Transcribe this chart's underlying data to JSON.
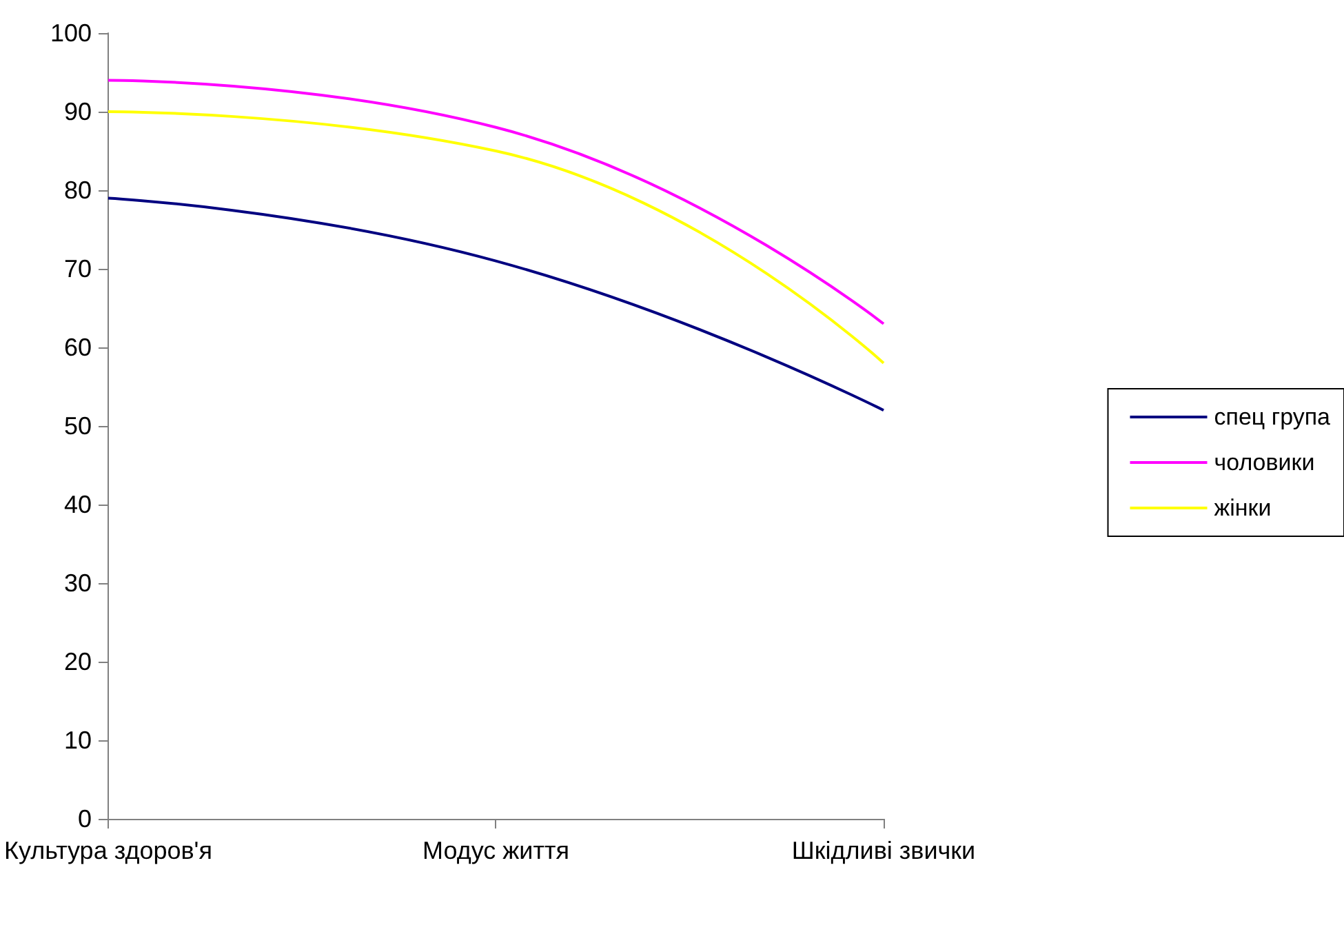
{
  "chart_data": {
    "type": "line",
    "categories": [
      "Культура здоров'я",
      "Модус життя",
      "Шкідливі звички"
    ],
    "series": [
      {
        "name": "спец група",
        "color": "#000080",
        "values": [
          79,
          71,
          52
        ]
      },
      {
        "name": "чоловики",
        "color": "#ff00ff",
        "values": [
          94,
          88,
          63
        ]
      },
      {
        "name": "жінки",
        "color": "#ffff00",
        "values": [
          90,
          85,
          58
        ]
      }
    ],
    "ylim": [
      0,
      100
    ],
    "yticks": [
      0,
      10,
      20,
      30,
      40,
      50,
      60,
      70,
      80,
      90,
      100
    ],
    "grid": false,
    "legend": "right",
    "marker": "none",
    "line_style": "solid"
  }
}
